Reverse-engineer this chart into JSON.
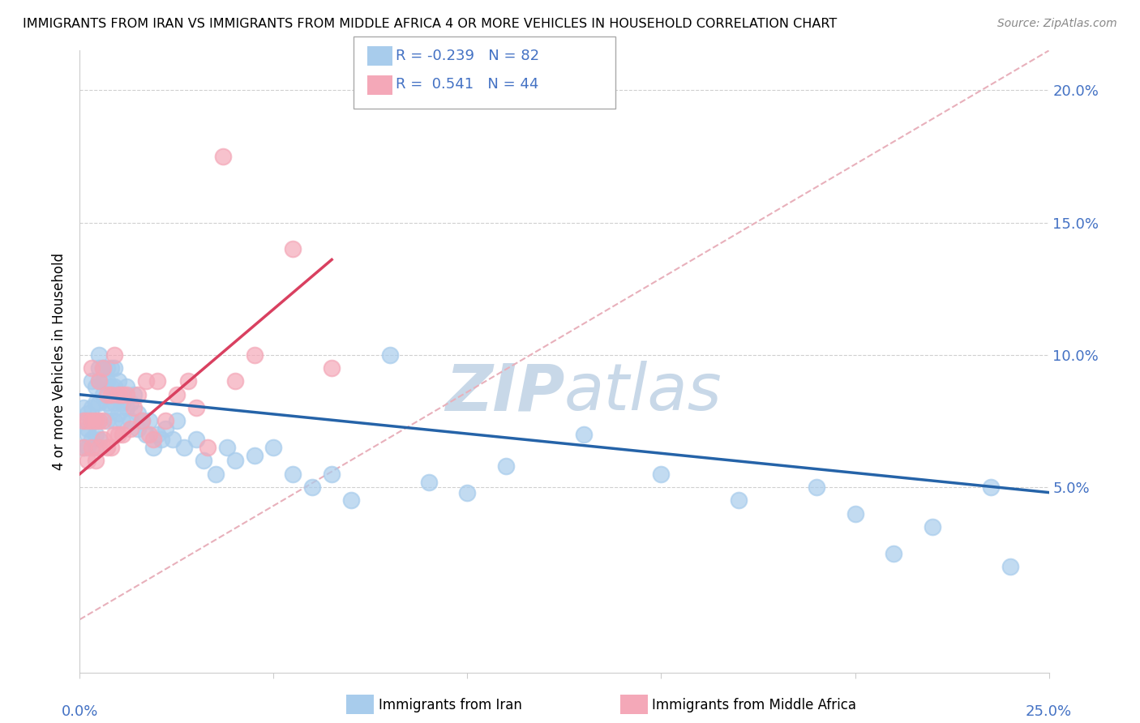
{
  "title": "IMMIGRANTS FROM IRAN VS IMMIGRANTS FROM MIDDLE AFRICA 4 OR MORE VEHICLES IN HOUSEHOLD CORRELATION CHART",
  "source": "Source: ZipAtlas.com",
  "ylabel": "4 or more Vehicles in Household",
  "ytick_labels": [
    "5.0%",
    "10.0%",
    "15.0%",
    "20.0%"
  ],
  "ytick_values": [
    0.05,
    0.1,
    0.15,
    0.2
  ],
  "xlim": [
    0.0,
    0.25
  ],
  "ylim": [
    -0.02,
    0.215
  ],
  "r_iran": -0.239,
  "n_iran": 82,
  "r_africa": 0.541,
  "n_africa": 44,
  "color_iran": "#a8ccec",
  "color_africa": "#f4a8b8",
  "line_color_iran": "#2563a8",
  "line_color_africa": "#d94060",
  "dash_line_color": "#e8b0bb",
  "watermark_color": "#c8d8e8",
  "blue_scatter_x": [
    0.001,
    0.001,
    0.001,
    0.002,
    0.002,
    0.002,
    0.002,
    0.003,
    0.003,
    0.003,
    0.003,
    0.004,
    0.004,
    0.004,
    0.004,
    0.004,
    0.005,
    0.005,
    0.005,
    0.005,
    0.005,
    0.005,
    0.006,
    0.006,
    0.006,
    0.007,
    0.007,
    0.007,
    0.007,
    0.008,
    0.008,
    0.008,
    0.009,
    0.009,
    0.009,
    0.009,
    0.01,
    0.01,
    0.01,
    0.011,
    0.011,
    0.012,
    0.012,
    0.013,
    0.013,
    0.014,
    0.015,
    0.015,
    0.016,
    0.017,
    0.018,
    0.019,
    0.02,
    0.021,
    0.022,
    0.024,
    0.025,
    0.027,
    0.03,
    0.032,
    0.035,
    0.038,
    0.04,
    0.045,
    0.05,
    0.055,
    0.06,
    0.065,
    0.07,
    0.08,
    0.09,
    0.1,
    0.11,
    0.13,
    0.15,
    0.17,
    0.19,
    0.2,
    0.21,
    0.22,
    0.235,
    0.24
  ],
  "blue_scatter_y": [
    0.065,
    0.075,
    0.08,
    0.07,
    0.072,
    0.065,
    0.078,
    0.068,
    0.075,
    0.08,
    0.09,
    0.07,
    0.075,
    0.065,
    0.082,
    0.088,
    0.068,
    0.075,
    0.082,
    0.09,
    0.095,
    0.1,
    0.085,
    0.09,
    0.095,
    0.075,
    0.082,
    0.09,
    0.095,
    0.08,
    0.088,
    0.095,
    0.075,
    0.082,
    0.088,
    0.095,
    0.078,
    0.085,
    0.09,
    0.075,
    0.082,
    0.08,
    0.088,
    0.082,
    0.075,
    0.085,
    0.078,
    0.072,
    0.075,
    0.07,
    0.075,
    0.065,
    0.07,
    0.068,
    0.072,
    0.068,
    0.075,
    0.065,
    0.068,
    0.06,
    0.055,
    0.065,
    0.06,
    0.062,
    0.065,
    0.055,
    0.05,
    0.055,
    0.045,
    0.1,
    0.052,
    0.048,
    0.058,
    0.07,
    0.055,
    0.045,
    0.05,
    0.04,
    0.025,
    0.035,
    0.05,
    0.02
  ],
  "pink_scatter_x": [
    0.001,
    0.001,
    0.002,
    0.002,
    0.003,
    0.003,
    0.003,
    0.004,
    0.004,
    0.005,
    0.005,
    0.005,
    0.006,
    0.006,
    0.006,
    0.007,
    0.007,
    0.008,
    0.008,
    0.009,
    0.009,
    0.01,
    0.01,
    0.011,
    0.011,
    0.012,
    0.013,
    0.014,
    0.015,
    0.016,
    0.017,
    0.018,
    0.019,
    0.02,
    0.022,
    0.025,
    0.028,
    0.03,
    0.033,
    0.037,
    0.04,
    0.045,
    0.055,
    0.065
  ],
  "pink_scatter_y": [
    0.065,
    0.075,
    0.06,
    0.075,
    0.065,
    0.075,
    0.095,
    0.06,
    0.075,
    0.065,
    0.075,
    0.09,
    0.068,
    0.075,
    0.095,
    0.065,
    0.085,
    0.065,
    0.085,
    0.07,
    0.1,
    0.07,
    0.085,
    0.07,
    0.085,
    0.085,
    0.072,
    0.08,
    0.085,
    0.075,
    0.09,
    0.07,
    0.068,
    0.09,
    0.075,
    0.085,
    0.09,
    0.08,
    0.065,
    0.175,
    0.09,
    0.1,
    0.14,
    0.095
  ],
  "blue_line_x0": 0.0,
  "blue_line_x1": 0.25,
  "blue_line_y0": 0.085,
  "blue_line_y1": 0.048,
  "pink_line_x0": 0.0,
  "pink_line_x1": 0.065,
  "pink_line_y0": 0.055,
  "pink_line_y1": 0.136
}
